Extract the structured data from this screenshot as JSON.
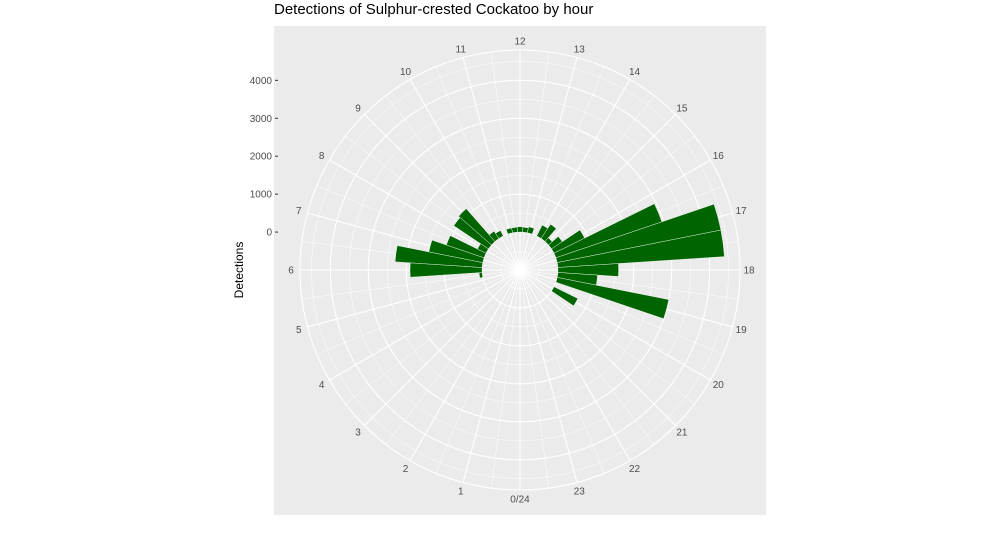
{
  "chart_data": {
    "type": "bar",
    "coord": "polar",
    "title": "Detections of Sulphur-crested Cockatoo by hour",
    "xlabel": "",
    "ylabel": "Detections",
    "bar_color": "#006400",
    "panel_color": "#ebebeb",
    "grid_color": "#ffffff",
    "categories": [
      "0/24",
      "1",
      "2",
      "3",
      "4",
      "5",
      "6",
      "7",
      "8",
      "9",
      "10",
      "11",
      "12",
      "13",
      "14",
      "15",
      "16",
      "17",
      "18",
      "19",
      "20",
      "21",
      "22",
      "23"
    ],
    "angle_ticks": [
      0,
      1,
      2,
      3,
      4,
      5,
      6,
      7,
      8,
      9,
      10,
      11,
      12,
      13,
      14,
      15,
      16,
      17,
      18,
      19,
      20,
      21,
      22,
      23
    ],
    "angle_labels": [
      "0/24",
      "1",
      "2",
      "3",
      "4",
      "5",
      "6",
      "7",
      "8",
      "9",
      "10",
      "11",
      "12",
      "13",
      "14",
      "15",
      "16",
      "17",
      "18",
      "19",
      "20",
      "21",
      "22",
      "23"
    ],
    "radial_ticks": [
      0,
      1000,
      2000,
      3000,
      4000
    ],
    "radial_labels": [
      "0",
      "1000",
      "2000",
      "3000",
      "4000"
    ],
    "radial_range": [
      -1000,
      4800
    ],
    "bars": [
      {
        "hour": 5.5,
        "value": 80
      },
      {
        "hour": 6,
        "value": 1900
      },
      {
        "hour": 6.5,
        "value": 2300
      },
      {
        "hour": 7,
        "value": 1450
      },
      {
        "hour": 7.5,
        "value": 1050
      },
      {
        "hour": 8,
        "value": 250
      },
      {
        "hour": 8.5,
        "value": 1100
      },
      {
        "hour": 9,
        "value": 1150
      },
      {
        "hour": 9.5,
        "value": 230
      },
      {
        "hour": 10,
        "value": 160
      },
      {
        "hour": 11,
        "value": 130
      },
      {
        "hour": 11.5,
        "value": 130
      },
      {
        "hour": 12,
        "value": 140
      },
      {
        "hour": 12.5,
        "value": 130
      },
      {
        "hour": 13,
        "value": 160
      },
      {
        "hour": 14,
        "value": 320
      },
      {
        "hour": 14.5,
        "value": 450
      },
      {
        "hour": 15,
        "value": 130
      },
      {
        "hour": 15.5,
        "value": 340
      },
      {
        "hour": 16,
        "value": 900
      },
      {
        "hour": 16.5,
        "value": 2950
      },
      {
        "hour": 17,
        "value": 4400
      },
      {
        "hour": 17.5,
        "value": 4400
      },
      {
        "hour": 18,
        "value": 1600
      },
      {
        "hour": 18.5,
        "value": 1050
      },
      {
        "hour": 19,
        "value": 3000
      },
      {
        "hour": 20,
        "value": 700
      }
    ]
  }
}
